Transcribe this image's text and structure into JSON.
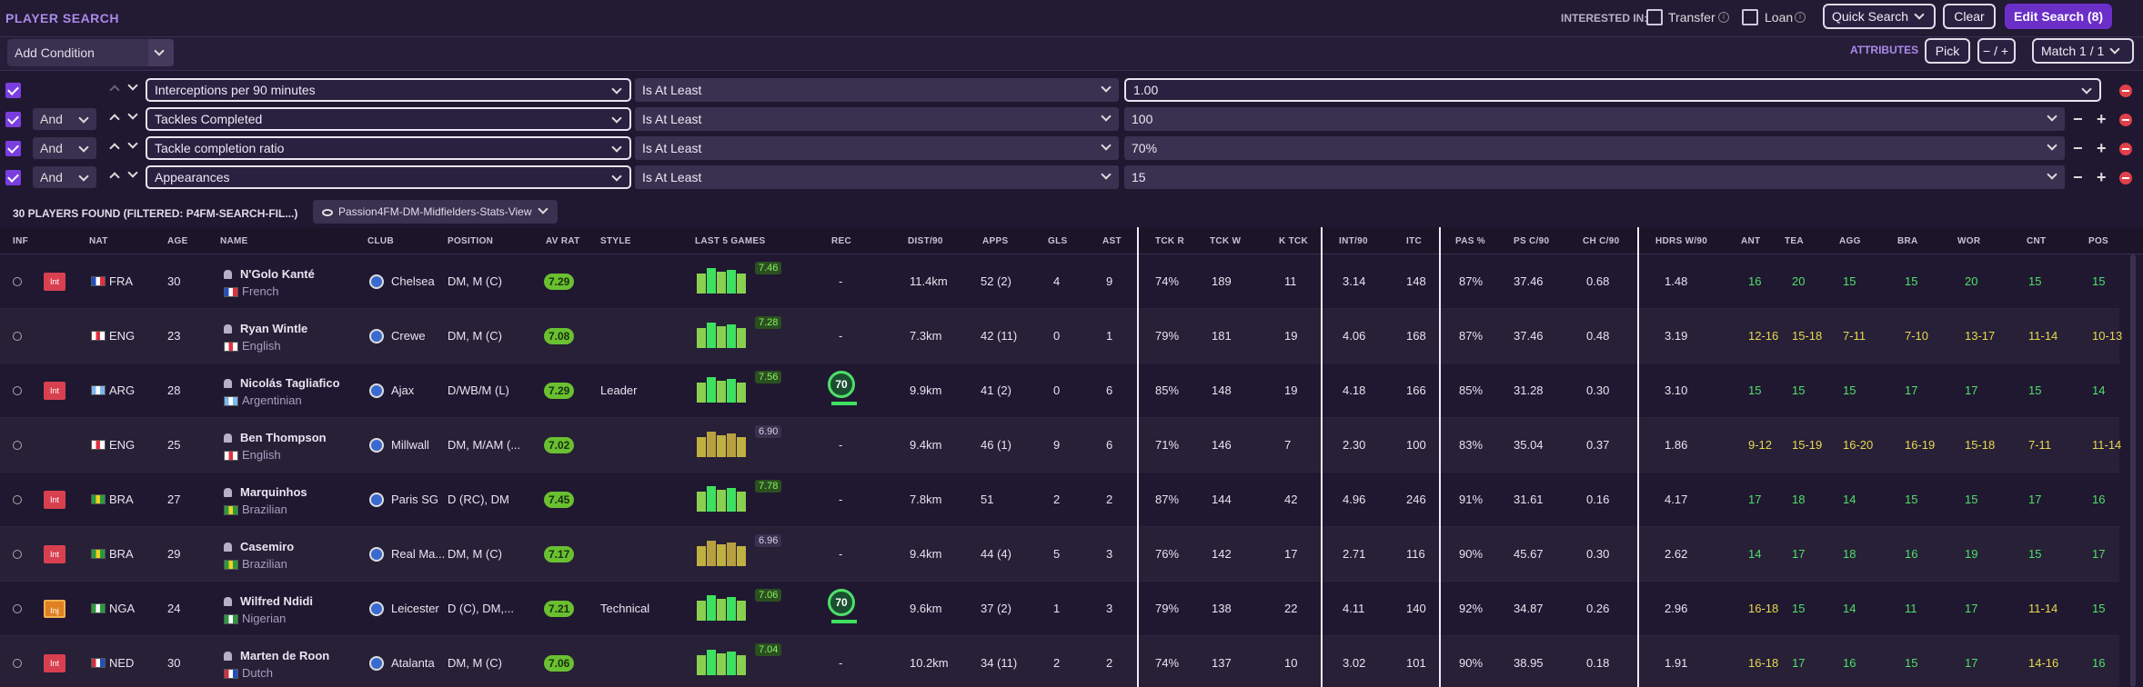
{
  "header": {
    "title": "PLAYER SEARCH",
    "interested_in": "INTERESTED IN:",
    "transfer": "Transfer",
    "loan": "Loan",
    "quick_search": "Quick Search",
    "clear": "Clear",
    "edit_search": "Edit Search (8)"
  },
  "conditions_bar": {
    "add_condition": "Add Condition",
    "attributes": "ATTRIBUTES",
    "pick": "Pick",
    "minus": "−",
    "plus": "+",
    "match": "Match 1 / 1"
  },
  "filters": [
    {
      "joiner": "",
      "field": "Interceptions per 90 minutes",
      "op": "Is At Least",
      "value": "1.00"
    },
    {
      "joiner": "And",
      "field": "Tackles Completed",
      "op": "Is At Least",
      "value": "100"
    },
    {
      "joiner": "And",
      "field": "Tackle completion ratio",
      "op": "Is At Least",
      "value": "70%"
    },
    {
      "joiner": "And",
      "field": "Appearances",
      "op": "Is At Least",
      "value": "15"
    }
  ],
  "results": {
    "found": "30 PLAYERS FOUND (FILTERED: P4FM-SEARCH-FIL...)",
    "view": "Passion4FM-DM-Midfielders-Stats-View"
  },
  "columns": [
    "INF",
    "NAT",
    "AGE",
    "NAME",
    "CLUB",
    "POSITION",
    "AV RAT",
    "STYLE",
    "LAST 5 GAMES",
    "REC",
    "DIST/90",
    "APPS",
    "GLS",
    "AST",
    "TCK R",
    "TCK W",
    "K TCK",
    "INT/90",
    "ITC",
    "PAS %",
    "PS C/90",
    "CH C/90",
    "HDRS W/90",
    "ANT",
    "TEA",
    "AGG",
    "BRA",
    "WOR",
    "CNT",
    "POS"
  ],
  "players": [
    {
      "inf": "Int",
      "nat": "FRA",
      "age": "30",
      "name": "N'Golo Kanté",
      "nationality": "French",
      "club": "Chelsea",
      "position": "DM, M (C)",
      "av_rat": "7.29",
      "style": "",
      "last5": "7.46",
      "rec": "-",
      "dist": "11.4km",
      "apps": "52 (2)",
      "gls": "4",
      "ast": "9",
      "tckr": "74%",
      "tckw": "189",
      "ktck": "11",
      "int90": "3.14",
      "itc": "148",
      "pas": "87%",
      "psc": "37.46",
      "chc": "0.68",
      "hdr": "1.48",
      "ant": "16",
      "tea": "20",
      "agg": "15",
      "bra": "15",
      "wor": "20",
      "cnt": "15",
      "pos": "15"
    },
    {
      "inf": "",
      "nat": "ENG",
      "age": "23",
      "name": "Ryan Wintle",
      "nationality": "English",
      "club": "Crewe",
      "position": "DM, M (C)",
      "av_rat": "7.08",
      "style": "",
      "last5": "7.28",
      "rec": "-",
      "dist": "7.3km",
      "apps": "42 (11)",
      "gls": "0",
      "ast": "1",
      "tckr": "79%",
      "tckw": "181",
      "ktck": "19",
      "int90": "4.06",
      "itc": "168",
      "pas": "87%",
      "psc": "37.46",
      "chc": "0.48",
      "hdr": "3.19",
      "ant": "12-16",
      "tea": "15-18",
      "agg": "7-11",
      "bra": "7-10",
      "wor": "13-17",
      "cnt": "11-14",
      "pos": "10-13"
    },
    {
      "inf": "Int",
      "nat": "ARG",
      "age": "28",
      "name": "Nicolás Tagliafico",
      "nationality": "Argentinian",
      "club": "Ajax",
      "position": "D/WB/M (L)",
      "av_rat": "7.29",
      "style": "Leader",
      "last5": "7.56",
      "rec": "70",
      "dist": "9.9km",
      "apps": "41 (2)",
      "gls": "0",
      "ast": "6",
      "tckr": "85%",
      "tckw": "148",
      "ktck": "19",
      "int90": "4.18",
      "itc": "166",
      "pas": "85%",
      "psc": "31.28",
      "chc": "0.30",
      "hdr": "3.10",
      "ant": "15",
      "tea": "15",
      "agg": "15",
      "bra": "17",
      "wor": "17",
      "cnt": "15",
      "pos": "14"
    },
    {
      "inf": "",
      "nat": "ENG",
      "age": "25",
      "name": "Ben Thompson",
      "nationality": "English",
      "club": "Millwall",
      "position": "DM, M/AM (...",
      "av_rat": "7.02",
      "style": "",
      "last5": "6.90",
      "rec": "-",
      "dist": "9.4km",
      "apps": "46 (1)",
      "gls": "9",
      "ast": "6",
      "tckr": "71%",
      "tckw": "146",
      "ktck": "7",
      "int90": "2.30",
      "itc": "100",
      "pas": "83%",
      "psc": "35.04",
      "chc": "0.37",
      "hdr": "1.86",
      "ant": "9-12",
      "tea": "15-19",
      "agg": "16-20",
      "bra": "16-19",
      "wor": "15-18",
      "cnt": "7-11",
      "pos": "11-14"
    },
    {
      "inf": "Int",
      "nat": "BRA",
      "age": "27",
      "name": "Marquinhos",
      "nationality": "Brazilian",
      "club": "Paris SG",
      "position": "D (RC), DM",
      "av_rat": "7.45",
      "style": "",
      "last5": "7.78",
      "rec": "-",
      "dist": "7.8km",
      "apps": "51",
      "gls": "2",
      "ast": "2",
      "tckr": "87%",
      "tckw": "144",
      "ktck": "42",
      "int90": "4.96",
      "itc": "246",
      "pas": "91%",
      "psc": "31.61",
      "chc": "0.16",
      "hdr": "4.17",
      "ant": "17",
      "tea": "18",
      "agg": "14",
      "bra": "15",
      "wor": "15",
      "cnt": "17",
      "pos": "16"
    },
    {
      "inf": "Int",
      "nat": "BRA",
      "age": "29",
      "name": "Casemiro",
      "nationality": "Brazilian",
      "club": "Real Ma...",
      "position": "DM, M (C)",
      "av_rat": "7.17",
      "style": "",
      "last5": "6.96",
      "rec": "-",
      "dist": "9.4km",
      "apps": "44 (4)",
      "gls": "5",
      "ast": "3",
      "tckr": "76%",
      "tckw": "142",
      "ktck": "17",
      "int90": "2.71",
      "itc": "116",
      "pas": "90%",
      "psc": "45.67",
      "chc": "0.30",
      "hdr": "2.62",
      "ant": "14",
      "tea": "17",
      "agg": "18",
      "bra": "16",
      "wor": "19",
      "cnt": "15",
      "pos": "17"
    },
    {
      "inf": "Inj",
      "nat": "NGA",
      "age": "24",
      "name": "Wilfred Ndidi",
      "nationality": "Nigerian",
      "club": "Leicester",
      "position": "D (C), DM,...",
      "av_rat": "7.21",
      "style": "Technical",
      "last5": "7.06",
      "rec": "70",
      "dist": "9.6km",
      "apps": "37 (2)",
      "gls": "1",
      "ast": "3",
      "tckr": "79%",
      "tckw": "138",
      "ktck": "22",
      "int90": "4.11",
      "itc": "140",
      "pas": "92%",
      "psc": "34.87",
      "chc": "0.26",
      "hdr": "2.96",
      "ant": "16-18",
      "tea": "15",
      "agg": "14",
      "bra": "11",
      "wor": "17",
      "cnt": "11-14",
      "pos": "15"
    },
    {
      "inf": "Int",
      "nat": "NED",
      "age": "30",
      "name": "Marten de Roon",
      "nationality": "Dutch",
      "club": "Atalanta",
      "position": "DM, M (C)",
      "av_rat": "7.06",
      "style": "",
      "last5": "7.04",
      "rec": "-",
      "dist": "10.2km",
      "apps": "34 (11)",
      "gls": "2",
      "ast": "2",
      "tckr": "74%",
      "tckw": "137",
      "ktck": "10",
      "int90": "3.02",
      "itc": "101",
      "pas": "90%",
      "psc": "38.95",
      "chc": "0.18",
      "hdr": "1.91",
      "ant": "16-18",
      "tea": "17",
      "agg": "16",
      "bra": "15",
      "wor": "17",
      "cnt": "14-16",
      "pos": "16"
    }
  ]
}
